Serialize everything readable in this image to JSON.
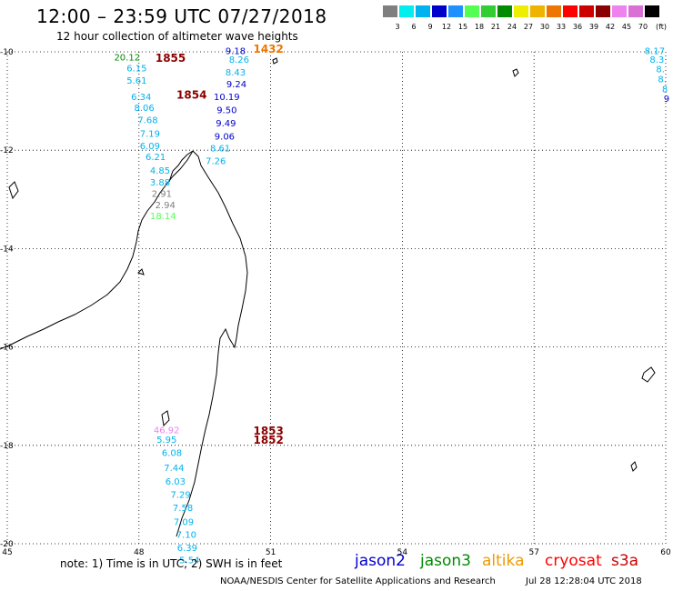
{
  "title": "12:00 – 23:59 UTC 07/27/2018",
  "subtitle": "12 hour collection of altimeter wave heights",
  "legend": {
    "unit_label": "(ft)",
    "colors": [
      "#7f7f7f",
      "#00eeee",
      "#00b2ee",
      "#0000cd",
      "#1e90ff",
      "#54ff54",
      "#32cd32",
      "#008b00",
      "#eeee00",
      "#eeb400",
      "#ee7600",
      "#ff0000",
      "#cd0000",
      "#8b0000",
      "#ee82ee",
      "#da70d6",
      "#000000"
    ],
    "ticks": [
      "3",
      "6",
      "9",
      "12",
      "15",
      "18",
      "21",
      "24",
      "27",
      "30",
      "33",
      "36",
      "39",
      "42",
      "45",
      "70"
    ]
  },
  "axes": {
    "lon_labels": [
      "45",
      "48",
      "51",
      "54",
      "57",
      "60"
    ],
    "lat_labels": [
      "-10",
      "-12",
      "-14",
      "-16",
      "-18",
      "-20"
    ]
  },
  "observations": [
    {
      "v": "9.18",
      "lon": 50.2,
      "lat": -10.05,
      "c": "#0000cd"
    },
    {
      "v": "8.26",
      "lon": 50.28,
      "lat": -10.22,
      "c": "#00b2ee"
    },
    {
      "v": "8.43",
      "lon": 50.2,
      "lat": -10.48,
      "c": "#00b2ee"
    },
    {
      "v": "9.24",
      "lon": 50.22,
      "lat": -10.72,
      "c": "#0000cd"
    },
    {
      "v": "10.19",
      "lon": 50.0,
      "lat": -10.98,
      "c": "#0000cd"
    },
    {
      "v": "9.50",
      "lon": 50.0,
      "lat": -11.25,
      "c": "#0000cd"
    },
    {
      "v": "9.49",
      "lon": 49.98,
      "lat": -11.52,
      "c": "#0000cd"
    },
    {
      "v": "9.06",
      "lon": 49.95,
      "lat": -11.78,
      "c": "#0000cd"
    },
    {
      "v": "8.61",
      "lon": 49.85,
      "lat": -12.02,
      "c": "#00b2ee"
    },
    {
      "v": "7.26",
      "lon": 49.75,
      "lat": -12.28,
      "c": "#00b2ee"
    },
    {
      "v": "20.12",
      "lon": 47.73,
      "lat": -10.18,
      "c": "#008b00"
    },
    {
      "v": "6.15",
      "lon": 47.95,
      "lat": -10.4,
      "c": "#00b2ee"
    },
    {
      "v": "5.61",
      "lon": 47.95,
      "lat": -10.65,
      "c": "#00b2ee"
    },
    {
      "v": "6.34",
      "lon": 48.05,
      "lat": -10.98,
      "c": "#00b2ee"
    },
    {
      "v": "8.06",
      "lon": 48.12,
      "lat": -11.2,
      "c": "#00b2ee"
    },
    {
      "v": "7.68",
      "lon": 48.2,
      "lat": -11.45,
      "c": "#00b2ee"
    },
    {
      "v": "7.19",
      "lon": 48.25,
      "lat": -11.73,
      "c": "#00b2ee"
    },
    {
      "v": "6.09",
      "lon": 48.25,
      "lat": -11.98,
      "c": "#00b2ee"
    },
    {
      "v": "6.21",
      "lon": 48.38,
      "lat": -12.2,
      "c": "#00b2ee"
    },
    {
      "v": "4.85",
      "lon": 48.48,
      "lat": -12.48,
      "c": "#00b2ee"
    },
    {
      "v": "3.88",
      "lon": 48.48,
      "lat": -12.72,
      "c": "#00b2ee"
    },
    {
      "v": "2.91",
      "lon": 48.52,
      "lat": -12.95,
      "c": "#7f7f7f"
    },
    {
      "v": "2.94",
      "lon": 48.6,
      "lat": -13.18,
      "c": "#7f7f7f"
    },
    {
      "v": "18.14",
      "lon": 48.55,
      "lat": -13.4,
      "c": "#54ff54"
    },
    {
      "v": "8.17",
      "lon": 59.75,
      "lat": -10.05,
      "c": "#00b2ee"
    },
    {
      "v": "8.3",
      "lon": 59.8,
      "lat": -10.22,
      "c": "#00b2ee"
    },
    {
      "v": "8.",
      "lon": 59.88,
      "lat": -10.42,
      "c": "#00b2ee"
    },
    {
      "v": "8.",
      "lon": 59.92,
      "lat": -10.62,
      "c": "#00b2ee"
    },
    {
      "v": "8",
      "lon": 59.98,
      "lat": -10.82,
      "c": "#00b2ee"
    },
    {
      "v": "9",
      "lon": 60.02,
      "lat": -11.02,
      "c": "#0000cd"
    },
    {
      "v": "46.92",
      "lon": 48.63,
      "lat": -17.75,
      "c": "#ee82ee"
    },
    {
      "v": "5.95",
      "lon": 48.63,
      "lat": -17.95,
      "c": "#00b2ee"
    },
    {
      "v": "6.08",
      "lon": 48.75,
      "lat": -18.22,
      "c": "#00b2ee"
    },
    {
      "v": "7.44",
      "lon": 48.8,
      "lat": -18.52,
      "c": "#00b2ee"
    },
    {
      "v": "6.03",
      "lon": 48.83,
      "lat": -18.8,
      "c": "#00b2ee"
    },
    {
      "v": "7.29",
      "lon": 48.95,
      "lat": -19.07,
      "c": "#00b2ee"
    },
    {
      "v": "7.58",
      "lon": 49.0,
      "lat": -19.33,
      "c": "#00b2ee"
    },
    {
      "v": "7.09",
      "lon": 49.02,
      "lat": -19.62,
      "c": "#00b2ee"
    },
    {
      "v": "7.10",
      "lon": 49.08,
      "lat": -19.88,
      "c": "#00b2ee"
    },
    {
      "v": "6.39",
      "lon": 49.1,
      "lat": -20.15,
      "c": "#00b2ee"
    },
    {
      "v": "5.54",
      "lon": 49.15,
      "lat": -20.4,
      "c": "#00b2ee"
    }
  ],
  "pass_times": [
    {
      "t": "1855",
      "lon": 48.72,
      "lat": -10.2,
      "c": "#8b0000"
    },
    {
      "t": "1432",
      "lon": 50.95,
      "lat": -10.02,
      "c": "#ee7600"
    },
    {
      "t": "1854",
      "lon": 49.2,
      "lat": -10.95,
      "c": "#8b0000"
    },
    {
      "t": "1853",
      "lon": 50.95,
      "lat": -17.78,
      "c": "#8b0000"
    },
    {
      "t": "1852",
      "lon": 50.95,
      "lat": -17.97,
      "c": "#8b0000"
    }
  ],
  "footnote": "note:  1) Time is in UTC;  2) SWH is in feet",
  "satellites": [
    {
      "name": "jason2",
      "color": "#0000cd"
    },
    {
      "name": "jason3",
      "color": "#008b00"
    },
    {
      "name": "altika",
      "color": "#ee9a00"
    },
    {
      "name": "cryosat",
      "color": "#ff0000"
    },
    {
      "name": "s3a",
      "color": "#cd0000"
    }
  ],
  "credit": "NOAA/NESDIS Center for Satellite Applications and Research",
  "timestamp": "Jul 28 12:28:04 UTC 2018"
}
